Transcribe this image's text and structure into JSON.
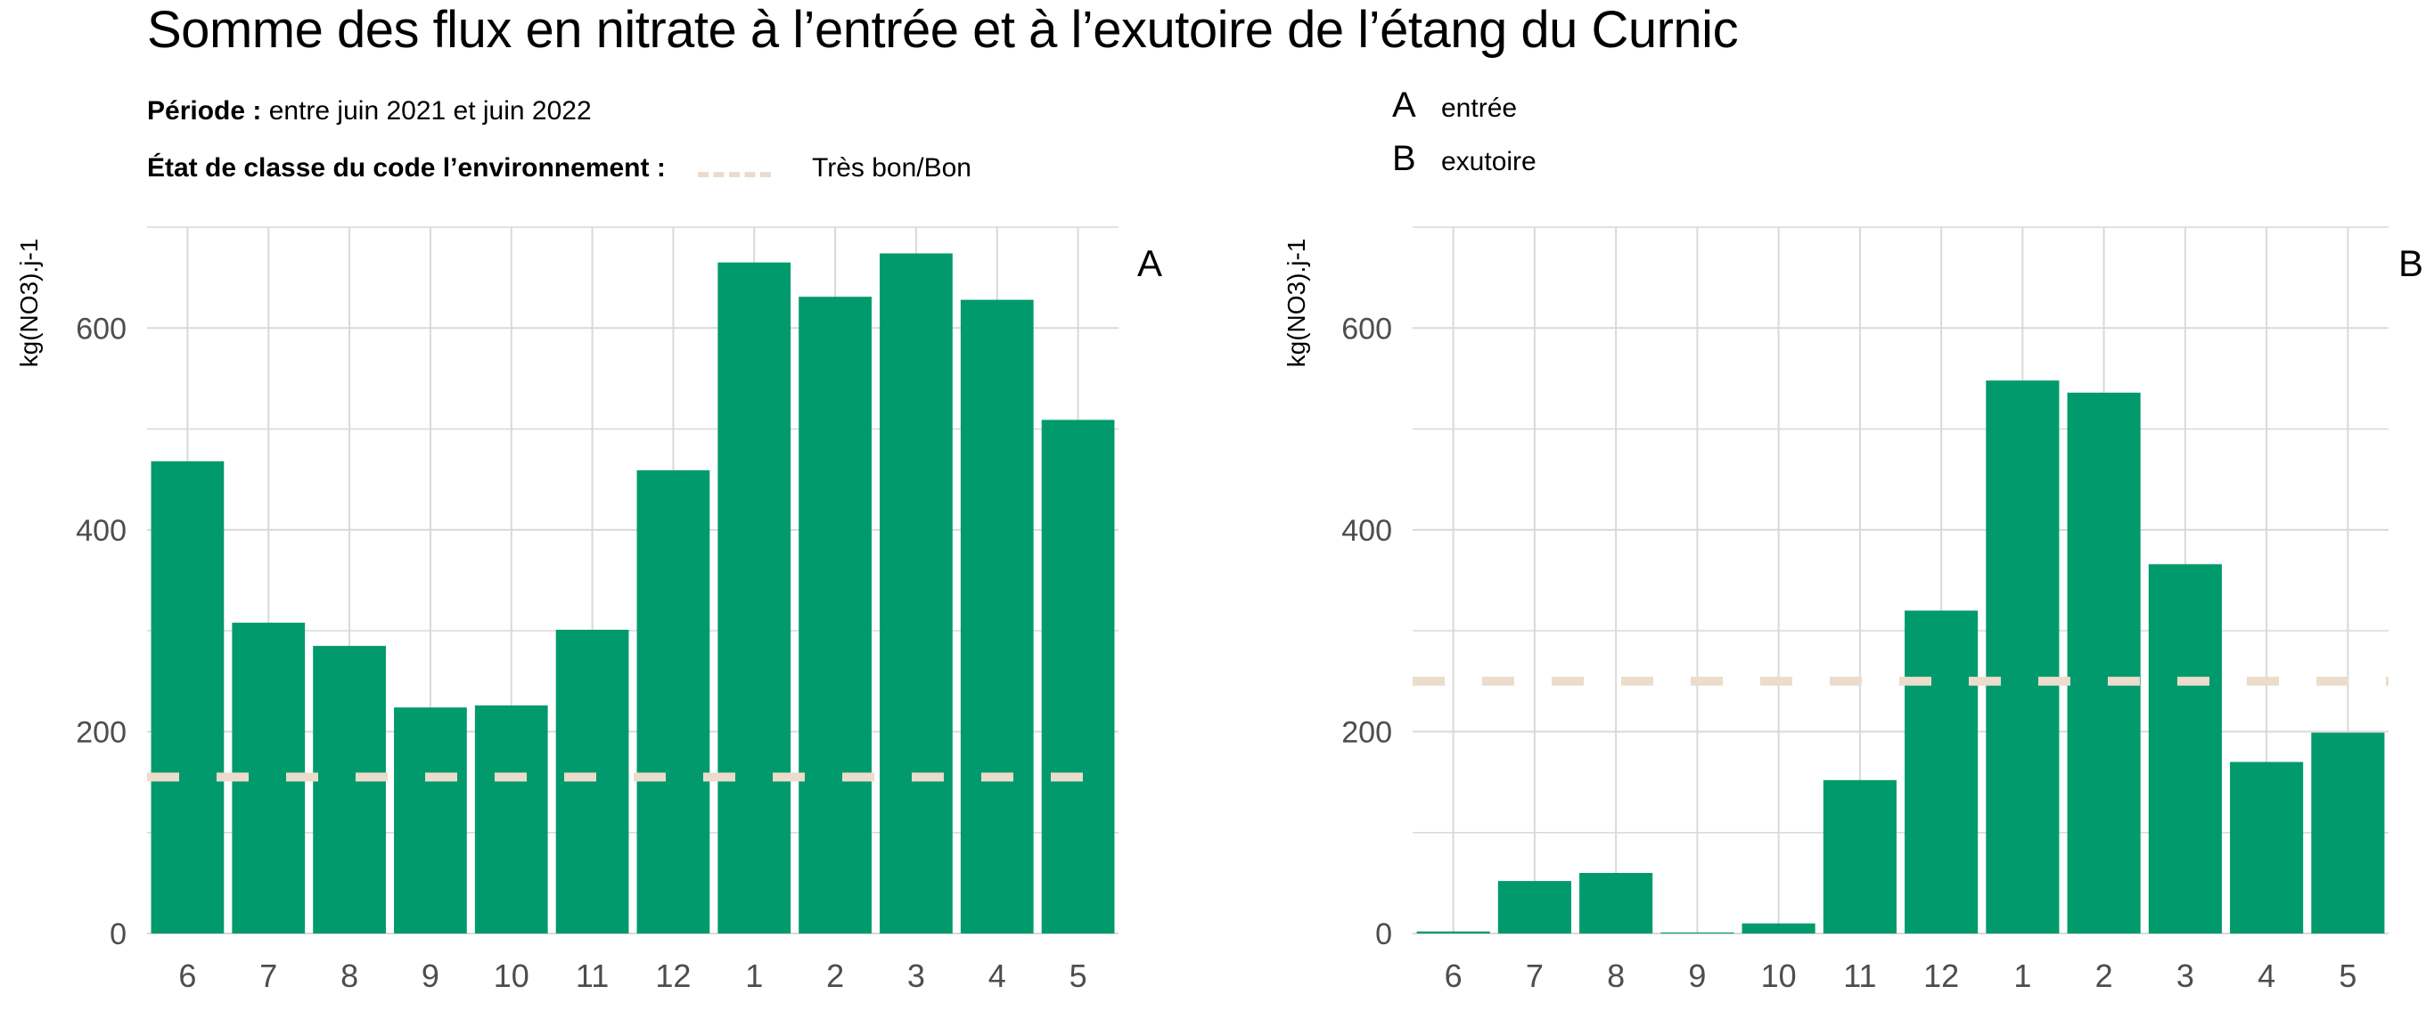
{
  "title": "Somme des flux en nitrate à l’entrée et à l’exutoire de l’étang du Curnic",
  "subtitle": {
    "periode_label": "Période :",
    "periode_value": "entre juin 2021 et juin 2022",
    "etat_label": "État de classe du code l’environnement :",
    "legend_label": "Très bon/Bon"
  },
  "panel_keys": [
    {
      "letter": "A",
      "label": "entrée"
    },
    {
      "letter": "B",
      "label": "exutoire"
    }
  ],
  "colors": {
    "bar": "#009A6D",
    "threshold": "#EBDCCB",
    "grid": "#D9D9D9",
    "tick_text": "#4D4D4D"
  },
  "chart_data": [
    {
      "type": "bar",
      "panel": "A",
      "ylabel": "kg(NO3).j-1",
      "ylim": [
        0,
        700
      ],
      "yticks": [
        0,
        200,
        400,
        600
      ],
      "categories": [
        "6",
        "7",
        "8",
        "9",
        "10",
        "11",
        "12",
        "1",
        "2",
        "3",
        "4",
        "5"
      ],
      "values": [
        468,
        308,
        285,
        224,
        226,
        301,
        459,
        665,
        631,
        674,
        628,
        509
      ],
      "threshold": 155,
      "grid": true
    },
    {
      "type": "bar",
      "panel": "B",
      "ylabel": "kg(NO3).j-1",
      "ylim": [
        0,
        700
      ],
      "yticks": [
        0,
        200,
        400,
        600
      ],
      "categories": [
        "6",
        "7",
        "8",
        "9",
        "10",
        "11",
        "12",
        "1",
        "2",
        "3",
        "4",
        "5"
      ],
      "values": [
        2,
        52,
        60,
        1,
        10,
        152,
        320,
        548,
        536,
        366,
        170,
        199
      ],
      "threshold": 250,
      "grid": true
    }
  ]
}
